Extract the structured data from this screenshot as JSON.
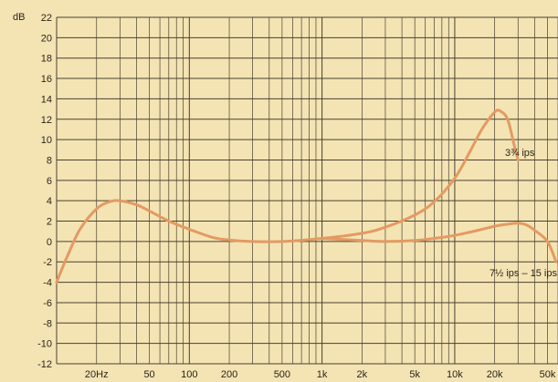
{
  "chart_data": {
    "type": "line",
    "title": "",
    "ylabel": "dB",
    "xlabel": "",
    "x_scale": "log",
    "xlim": [
      10,
      60000
    ],
    "ylim": [
      -12,
      22
    ],
    "grid": true,
    "y_ticks": [
      22,
      20,
      18,
      16,
      14,
      12,
      10,
      8,
      6,
      4,
      2,
      0,
      -2,
      -4,
      -6,
      -8,
      -10,
      -12
    ],
    "x_tick_labels": [
      {
        "value": 20,
        "label": "20Hz"
      },
      {
        "value": 50,
        "label": "50"
      },
      {
        "value": 100,
        "label": "100"
      },
      {
        "value": 200,
        "label": "200"
      },
      {
        "value": 500,
        "label": "500"
      },
      {
        "value": 1000,
        "label": "1k"
      },
      {
        "value": 2000,
        "label": "2k"
      },
      {
        "value": 5000,
        "label": "5k"
      },
      {
        "value": 10000,
        "label": "10k"
      },
      {
        "value": 20000,
        "label": "20k"
      },
      {
        "value": 50000,
        "label": "50k"
      }
    ],
    "series": [
      {
        "name": "3¾ ips",
        "color": "#e39a62",
        "x": [
          10,
          12,
          15,
          20,
          25,
          30,
          40,
          50,
          70,
          100,
          150,
          200,
          300,
          500,
          1000,
          2000,
          3000,
          5000,
          7000,
          10000,
          13000,
          16000,
          20000,
          22000,
          25000,
          28000,
          30000
        ],
        "y": [
          -4.0,
          -1.5,
          1.2,
          3.2,
          3.9,
          4.0,
          3.6,
          3.0,
          2.0,
          1.2,
          0.4,
          0.15,
          0.0,
          0.0,
          0.3,
          0.8,
          1.4,
          2.6,
          3.9,
          6.2,
          8.8,
          11.0,
          12.7,
          12.8,
          12.0,
          9.5,
          8.0
        ]
      },
      {
        "name": "7½ ips – 15 ips",
        "color": "#e39a62",
        "x": [
          1000,
          2000,
          3000,
          5000,
          7000,
          10000,
          15000,
          20000,
          25000,
          30000,
          35000,
          40000,
          50000,
          58000
        ],
        "y": [
          0.3,
          0.1,
          0.0,
          0.1,
          0.3,
          0.6,
          1.1,
          1.5,
          1.7,
          1.8,
          1.6,
          1.1,
          0.0,
          -2.0
        ]
      }
    ]
  }
}
